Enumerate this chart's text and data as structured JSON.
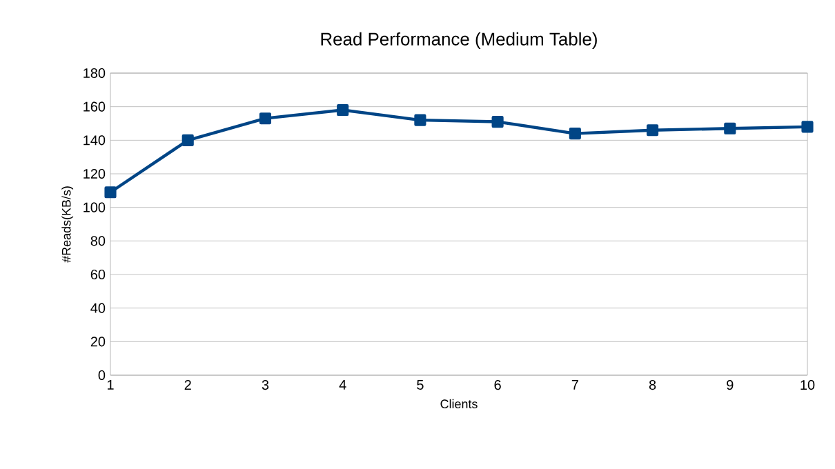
{
  "chart_data": {
    "type": "line",
    "title": "Read Performance (Medium Table)",
    "xlabel": "Clients",
    "ylabel": "#Reads(KB/s)",
    "x": [
      1,
      2,
      3,
      4,
      5,
      6,
      7,
      8,
      9,
      10
    ],
    "series": [
      {
        "color": "#004586",
        "values": [
          109,
          140,
          153,
          158,
          152,
          151,
          144,
          146,
          147,
          148
        ]
      }
    ],
    "xlim": [
      1,
      10
    ],
    "xticks": [
      1,
      2,
      3,
      4,
      5,
      6,
      7,
      8,
      9,
      10
    ],
    "ylim": [
      0,
      180
    ],
    "yticks": [
      0,
      20,
      40,
      60,
      80,
      100,
      120,
      140,
      160,
      180
    ],
    "grid": "y",
    "marker": "square",
    "line_style": "solid",
    "legend": false
  }
}
